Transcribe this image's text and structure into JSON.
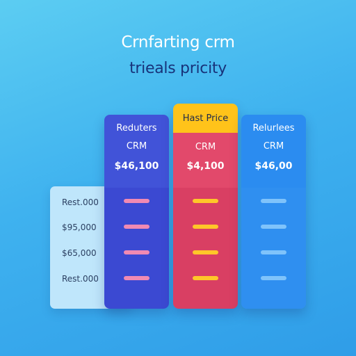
{
  "header": {
    "title": "Crnfarting crm",
    "subtitle": "trieals pricity"
  },
  "features": [
    "Rest.000",
    "$95,000",
    "$65,000",
    "Rest.000"
  ],
  "plans": [
    {
      "name": "Reduters",
      "subtitle": "CRM",
      "price": "$46,100",
      "color": "#4153d8",
      "bar_color": "#f08ab3"
    },
    {
      "badge": "Hast Price",
      "subtitle": "CRM",
      "price": "$4,100",
      "color": "#e2496b",
      "badge_color": "#ffc31a",
      "bar_color": "#ffc629"
    },
    {
      "name": "Relurlees",
      "subtitle": "CRM",
      "price": "$46,00",
      "color": "#2b8cf0",
      "bar_color": "#7fc3fb"
    }
  ]
}
